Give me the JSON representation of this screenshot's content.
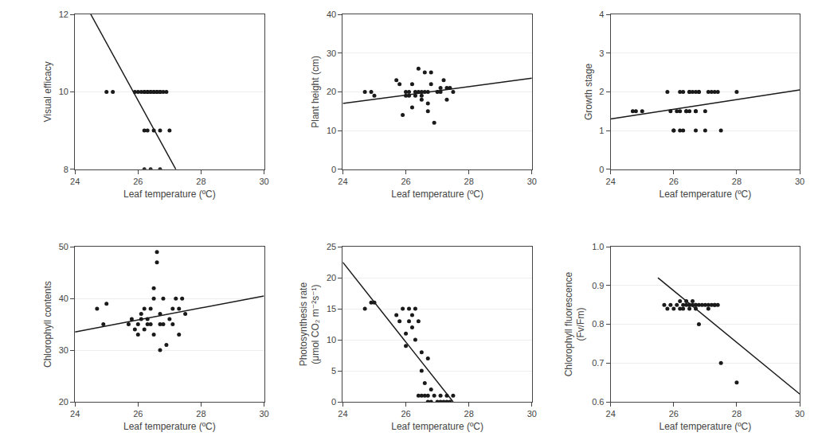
{
  "chart_data": [
    {
      "type": "scatter",
      "xlabel": "Leaf temperature (ºC)",
      "ylabel": "Visual efficacy",
      "xlim": [
        24,
        30
      ],
      "ylim": [
        8,
        12
      ],
      "xticks": [
        24,
        26,
        28,
        30
      ],
      "yticks": [
        8,
        10,
        12
      ],
      "grid": "y",
      "series": [
        {
          "type": "scatter",
          "color": "#1a1a1a",
          "x": [
            25.0,
            25.2,
            25.9,
            26.0,
            26.1,
            26.2,
            26.2,
            26.3,
            26.3,
            26.4,
            26.4,
            26.5,
            26.5,
            26.6,
            26.6,
            26.7,
            26.7,
            26.8,
            26.9,
            26.2,
            26.3,
            26.5,
            26.7,
            27.0,
            26.2,
            26.4,
            26.7
          ],
          "values": [
            10,
            10,
            10,
            10,
            10,
            10,
            10,
            10,
            10,
            10,
            10,
            10,
            10,
            10,
            10,
            10,
            10,
            10,
            10,
            9,
            9,
            9,
            9,
            9,
            8,
            8,
            8
          ]
        },
        {
          "type": "line",
          "color": "#1a1a1a",
          "x": [
            24.5,
            27.2
          ],
          "values": [
            12.0,
            8.0
          ]
        }
      ]
    },
    {
      "type": "scatter",
      "xlabel": "Leaf temperature (ºC)",
      "ylabel": "Plant height (cm)",
      "xlim": [
        24,
        30
      ],
      "ylim": [
        0,
        40
      ],
      "xticks": [
        24,
        26,
        28,
        30
      ],
      "yticks": [
        0,
        10,
        20,
        30,
        40
      ],
      "grid": "y",
      "series": [
        {
          "type": "scatter",
          "color": "#1a1a1a",
          "x": [
            24.7,
            24.9,
            25.0,
            25.7,
            25.8,
            25.9,
            26.0,
            26.0,
            26.1,
            26.1,
            26.2,
            26.2,
            26.3,
            26.3,
            26.4,
            26.4,
            26.5,
            26.5,
            26.5,
            26.6,
            26.6,
            26.7,
            26.7,
            26.7,
            26.8,
            26.8,
            26.9,
            27.0,
            27.1,
            27.1,
            27.2,
            27.3,
            27.3,
            27.4,
            27.5
          ],
          "values": [
            20,
            20,
            19,
            23,
            22,
            14,
            19,
            20,
            19,
            20,
            22,
            16,
            20,
            19,
            20,
            26,
            20,
            19,
            18,
            20,
            25,
            15,
            20,
            17,
            22,
            25,
            12,
            20,
            20,
            21,
            23,
            21,
            18,
            21,
            20
          ]
        },
        {
          "type": "line",
          "color": "#1a1a1a",
          "x": [
            24,
            30
          ],
          "values": [
            17.0,
            23.5
          ]
        }
      ]
    },
    {
      "type": "scatter",
      "xlabel": "Leaf temperature (ºC)",
      "ylabel": "Growth stage",
      "xlim": [
        24,
        30
      ],
      "ylim": [
        0,
        4
      ],
      "xticks": [
        24,
        26,
        28,
        30
      ],
      "yticks": [
        0,
        1,
        2,
        3,
        4
      ],
      "grid": "y",
      "series": [
        {
          "type": "scatter",
          "color": "#1a1a1a",
          "x": [
            24.7,
            24.8,
            25.0,
            25.8,
            25.9,
            26.0,
            26.0,
            26.1,
            26.2,
            26.2,
            26.2,
            26.3,
            26.3,
            26.4,
            26.4,
            26.5,
            26.5,
            26.5,
            26.6,
            26.7,
            26.7,
            26.7,
            26.7,
            26.8,
            26.8,
            27.0,
            27.0,
            27.1,
            27.2,
            27.3,
            27.4,
            27.5,
            28.0
          ],
          "values": [
            1.5,
            1.5,
            1.5,
            2,
            1.5,
            1,
            1,
            1.5,
            2,
            1.5,
            1,
            1,
            2,
            1.5,
            1.5,
            1.5,
            2,
            2,
            2,
            1.5,
            1.5,
            2,
            1,
            2,
            2,
            1.5,
            1,
            2,
            2,
            2,
            2,
            1,
            2
          ]
        },
        {
          "type": "line",
          "color": "#1a1a1a",
          "x": [
            24,
            30
          ],
          "values": [
            1.3,
            2.05
          ]
        }
      ]
    },
    {
      "type": "scatter",
      "xlabel": "Leaf temperature (ºC)",
      "ylabel": "Chlorophyll contents",
      "xlim": [
        24,
        30
      ],
      "ylim": [
        20,
        50
      ],
      "xticks": [
        24,
        26,
        28,
        30
      ],
      "yticks": [
        20,
        30,
        40,
        50
      ],
      "grid": "y",
      "series": [
        {
          "type": "scatter",
          "color": "#1a1a1a",
          "x": [
            24.7,
            24.9,
            25.0,
            25.7,
            25.8,
            25.9,
            26.0,
            26.0,
            26.1,
            26.1,
            26.2,
            26.2,
            26.3,
            26.3,
            26.4,
            26.4,
            26.5,
            26.5,
            26.5,
            26.6,
            26.6,
            26.7,
            26.7,
            26.7,
            26.8,
            26.8,
            26.9,
            27.0,
            27.1,
            27.1,
            27.2,
            27.3,
            27.3,
            27.4,
            27.5
          ],
          "values": [
            38,
            35,
            39,
            35,
            36,
            34,
            35,
            33,
            36,
            37,
            38,
            34,
            35,
            36,
            38,
            35,
            40,
            42,
            33,
            49,
            47,
            35,
            37,
            30,
            40,
            35,
            31,
            36,
            38,
            35,
            40,
            33,
            38,
            40,
            37
          ]
        },
        {
          "type": "line",
          "color": "#1a1a1a",
          "x": [
            24,
            30
          ],
          "values": [
            33.5,
            40.5
          ]
        }
      ]
    },
    {
      "type": "scatter",
      "xlabel": "Leaf temperature (ºC)",
      "ylabel": "Photosynthesis rate\n(μmol CO₂ m⁻²s⁻¹)",
      "xlim": [
        24,
        30
      ],
      "ylim": [
        0,
        25
      ],
      "xticks": [
        24,
        26,
        28,
        30
      ],
      "yticks": [
        0,
        5,
        10,
        15,
        20,
        25
      ],
      "grid": "y",
      "series": [
        {
          "type": "scatter",
          "color": "#1a1a1a",
          "x": [
            24.7,
            24.9,
            25.0,
            25.7,
            25.8,
            25.9,
            26.0,
            26.0,
            26.1,
            26.1,
            26.2,
            26.2,
            26.3,
            26.3,
            26.4,
            26.4,
            26.5,
            26.5,
            26.5,
            26.6,
            26.6,
            26.7,
            26.7,
            26.7,
            26.8,
            26.8,
            26.9,
            27.0,
            27.1,
            27.1,
            27.2,
            27.3,
            27.3,
            27.4,
            27.5
          ],
          "values": [
            15,
            16,
            16,
            14,
            13,
            15,
            9,
            11,
            13,
            15,
            14,
            12,
            10,
            15,
            13,
            1,
            8,
            5,
            1,
            3,
            1,
            7,
            1,
            0,
            2,
            0,
            1,
            0,
            1,
            0,
            0,
            1,
            0,
            0,
            1
          ]
        },
        {
          "type": "line",
          "color": "#1a1a1a",
          "x": [
            24,
            27.5
          ],
          "values": [
            22.5,
            0.0
          ]
        }
      ]
    },
    {
      "type": "scatter",
      "xlabel": "Leaf temperature (ºC)",
      "ylabel": "Chlorophyll fluorescence\n(Fv/Fm)",
      "xlim": [
        24,
        30
      ],
      "ylim": [
        0.6,
        1.0
      ],
      "xticks": [
        24,
        26,
        28,
        30
      ],
      "yticks": [
        0.6,
        0.7,
        0.8,
        0.9,
        {
          "value": 1.0,
          "label": "1.0"
        }
      ],
      "grid": "y",
      "series": [
        {
          "type": "scatter",
          "color": "#1a1a1a",
          "x": [
            25.7,
            25.8,
            25.9,
            26.0,
            26.1,
            26.2,
            26.2,
            26.3,
            26.3,
            26.4,
            26.4,
            26.5,
            26.5,
            26.5,
            26.6,
            26.6,
            26.7,
            26.7,
            26.7,
            26.8,
            26.8,
            26.9,
            27.0,
            27.1,
            27.1,
            27.2,
            27.3,
            27.3,
            27.4,
            27.5,
            28.0
          ],
          "values": [
            0.85,
            0.84,
            0.85,
            0.84,
            0.85,
            0.86,
            0.84,
            0.84,
            0.85,
            0.85,
            0.86,
            0.84,
            0.85,
            0.85,
            0.85,
            0.86,
            0.85,
            0.84,
            0.85,
            0.85,
            0.8,
            0.85,
            0.85,
            0.84,
            0.85,
            0.85,
            0.85,
            0.85,
            0.85,
            0.7,
            0.65
          ]
        },
        {
          "type": "line",
          "color": "#1a1a1a",
          "x": [
            25.5,
            30
          ],
          "values": [
            0.92,
            0.62
          ]
        }
      ]
    }
  ]
}
